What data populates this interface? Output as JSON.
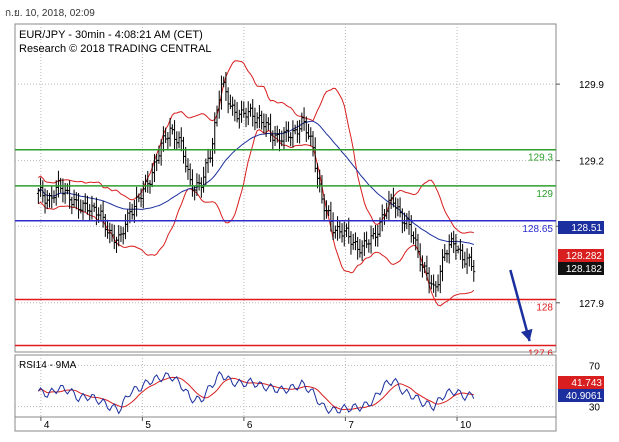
{
  "header": {
    "timestamp": "ก.ย. 10, 2018, 02:09"
  },
  "chart_data": {
    "type": "candlestick",
    "title": "EUR/JPY - 30min - 4:08:21 AM (CET)",
    "subtitle": "Research © 2018 TRADING CENTRAL",
    "y_ticks": [
      "129.9",
      "129.2",
      "128.6",
      "127.9"
    ],
    "y_tick_values": [
      129.9,
      129.2,
      128.6,
      127.9
    ],
    "ylim": [
      127.45,
      130.45
    ],
    "x_ticks": [
      "4",
      "5",
      "6",
      "7",
      "10"
    ],
    "x_tick_positions": [
      0.25,
      10.25,
      20.25,
      30.25,
      41.25
    ],
    "xlim": [
      -2.3,
      51
    ],
    "levels": [
      {
        "label": "129.3",
        "value": 129.3,
        "color": "#2e9e2e"
      },
      {
        "label": "129",
        "value": 128.97,
        "color": "#2e9e2e"
      },
      {
        "label": "128.65",
        "value": 128.65,
        "color": "#2c2ccc"
      },
      {
        "label": "128",
        "value": 127.93,
        "color": "#e01a1a"
      },
      {
        "label": "127.6",
        "value": 127.51,
        "color": "#e01a1a"
      }
    ],
    "price_badges": [
      {
        "label": "128.51",
        "value": 128.51,
        "bg": "#1b2f9e"
      },
      {
        "label": "128.282",
        "value": 128.282,
        "bg": "#d81e1e"
      },
      {
        "label": "128.182",
        "value": 128.182,
        "bg": "#111111"
      }
    ],
    "close": [
      128.9,
      128.85,
      128.95,
      128.9,
      128.75,
      128.8,
      128.7,
      128.55,
      128.45,
      128.75,
      128.85,
      129.05,
      129.3,
      129.5,
      129.35,
      129.0,
      128.95,
      129.3,
      129.9,
      129.7,
      129.6,
      129.65,
      129.55,
      129.45,
      129.4,
      129.45,
      129.55,
      129.35,
      128.8,
      128.6,
      128.55,
      128.45,
      128.4,
      128.5,
      128.7,
      128.85,
      128.65,
      128.5,
      128.2,
      128.0,
      128.35,
      128.45,
      128.3,
      128.2
    ],
    "annotations": [
      {
        "type": "arrow",
        "color": "#1b2f9e",
        "from": [
          46.5,
          128.2
        ],
        "to": [
          48.4,
          127.55
        ]
      }
    ],
    "indicator": {
      "label": "RSI14 - 9MA",
      "y_ticks": [
        "70",
        "30"
      ],
      "y_tick_values": [
        70,
        30
      ],
      "ylim": [
        20,
        80
      ],
      "badges": [
        {
          "label": "41.743",
          "value": 41.743,
          "bg": "#d81e1e"
        },
        {
          "label": "40.9061",
          "value": 40.9061,
          "bg": "#1b2f9e"
        }
      ],
      "rsi": [
        45,
        42,
        48,
        46,
        38,
        40,
        36,
        30,
        27,
        44,
        48,
        55,
        58,
        60,
        52,
        38,
        36,
        50,
        62,
        54,
        52,
        54,
        50,
        48,
        46,
        48,
        52,
        44,
        30,
        26,
        28,
        29,
        30,
        36,
        50,
        56,
        44,
        40,
        33,
        30,
        42,
        45,
        40,
        41
      ]
    }
  }
}
